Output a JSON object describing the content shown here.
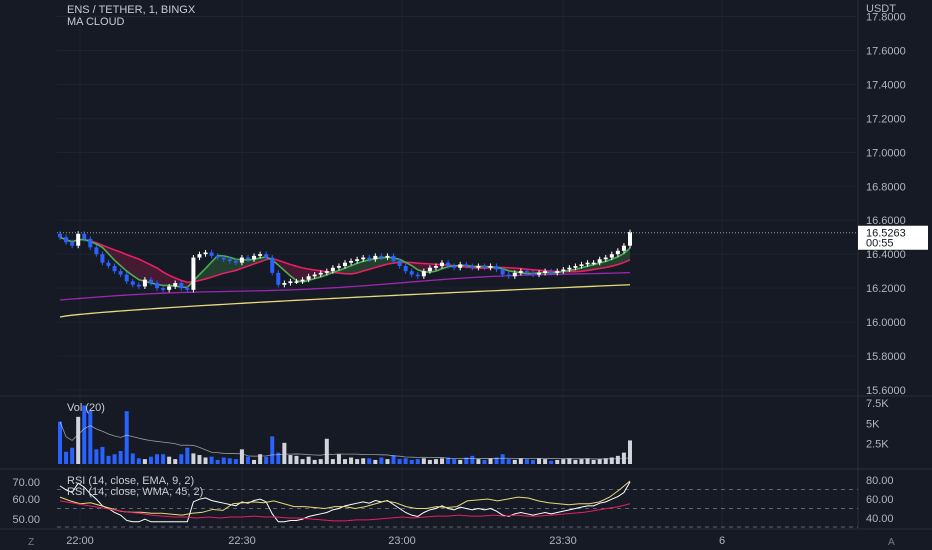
{
  "header": {
    "symbol_line": "ENS / TETHER, 1, BINGX",
    "indicator": "MA CLOUD",
    "currency": "USDT"
  },
  "price_panel": {
    "y_ticks": [
      "17.8000",
      "17.6000",
      "17.4000",
      "17.2000",
      "17.0000",
      "16.8000",
      "16.6000",
      "16.4000",
      "16.2000",
      "16.0000",
      "15.8000",
      "15.6000"
    ],
    "last_price": "16.5263",
    "countdown": "00:55"
  },
  "volume_panel": {
    "legend": "Vol (20)",
    "y_ticks": [
      "7.5K",
      "5K",
      "2.5K"
    ]
  },
  "rsi_panel": {
    "legend_1": "RSI (14, close, EMA, 9, 2)",
    "legend_2": "RSI (14, close, WMA, 45, 2)",
    "left_ticks": [
      "70.00",
      "60.00",
      "50.00"
    ],
    "right_ticks": [
      "80.00",
      "60.00",
      "40.00"
    ]
  },
  "time_axis": {
    "labels": [
      "22:00",
      "22:30",
      "23:00",
      "23:30",
      "6"
    ],
    "corner_left": "Z",
    "corner_right": "A"
  },
  "colors": {
    "bg": "#161a25",
    "up": "#ffffff",
    "down": "#2962ff",
    "ma_fast": "#4caf50",
    "ma_mid": "#e91e63",
    "ma_slow": "#9c27b0",
    "ma_long": "#e8d97a"
  },
  "chart_data": {
    "type": "candlestick",
    "x_range": [
      "21:55",
      "00:00"
    ],
    "ylim": [
      15.6,
      17.8
    ],
    "closes": [
      16.5,
      16.47,
      16.45,
      16.52,
      16.49,
      16.44,
      16.4,
      16.35,
      16.33,
      16.3,
      16.28,
      16.24,
      16.22,
      16.21,
      16.25,
      16.23,
      16.2,
      16.19,
      16.21,
      16.23,
      16.2,
      16.19,
      16.38,
      16.4,
      16.41,
      16.39,
      16.38,
      16.37,
      16.36,
      16.35,
      16.38,
      16.37,
      16.39,
      16.4,
      16.38,
      16.29,
      16.22,
      16.23,
      16.24,
      16.24,
      16.25,
      16.27,
      16.28,
      16.29,
      16.3,
      16.32,
      16.33,
      16.35,
      16.36,
      16.37,
      16.38,
      16.37,
      16.39,
      16.38,
      16.39,
      16.36,
      16.33,
      16.3,
      16.28,
      16.27,
      16.3,
      16.32,
      16.33,
      16.35,
      16.33,
      16.32,
      16.34,
      16.33,
      16.32,
      16.33,
      16.32,
      16.33,
      16.31,
      16.28,
      16.27,
      16.29,
      16.3,
      16.29,
      16.28,
      16.29,
      16.3,
      16.29,
      16.3,
      16.31,
      16.32,
      16.33,
      16.34,
      16.35,
      16.35,
      16.37,
      16.38,
      16.4,
      16.42,
      16.45,
      16.53
    ],
    "volume": [
      5200,
      1500,
      2000,
      5800,
      7200,
      6600,
      1800,
      2100,
      1000,
      1200,
      1600,
      6500,
      1300,
      700,
      600,
      900,
      1200,
      1200,
      900,
      600,
      1200,
      2000,
      1300,
      1100,
      800,
      900,
      500,
      800,
      700,
      600,
      1800,
      900,
      500,
      1200,
      900,
      3400,
      1400,
      2600,
      1100,
      1000,
      600,
      900,
      500,
      600,
      3100,
      600,
      1200,
      600,
      800,
      600,
      700,
      700,
      500,
      800,
      600,
      1100,
      600,
      700,
      500,
      600,
      700,
      500,
      600,
      700,
      800,
      600,
      500,
      800,
      1000,
      600,
      500,
      700,
      800,
      1200,
      600,
      500,
      700,
      600,
      500,
      700,
      600,
      400,
      500,
      600,
      700,
      500,
      600,
      700,
      500,
      600,
      700,
      800,
      1000,
      1400,
      2900
    ],
    "rsi_ema": {
      "values": [
        62,
        58,
        55,
        56,
        53,
        50,
        47,
        46,
        46,
        45,
        45,
        44,
        43,
        45,
        46,
        49,
        48,
        55,
        56,
        57,
        56,
        58,
        55,
        52,
        52,
        51,
        50,
        52,
        52,
        50,
        52,
        55,
        58,
        56,
        52,
        50,
        50,
        52,
        51,
        52,
        58,
        59,
        60,
        58,
        60,
        62,
        61,
        58,
        56,
        55,
        54,
        55,
        55,
        57,
        62,
        70,
        79
      ]
    },
    "rsi_wma": {
      "values": [
        58,
        56,
        54,
        52,
        50,
        48,
        46,
        45,
        43,
        42,
        41,
        41,
        40,
        41,
        40,
        41,
        41,
        42,
        41,
        41,
        40,
        40,
        39,
        38,
        37,
        37,
        38,
        38,
        39,
        40,
        41,
        40,
        41,
        42,
        42,
        43,
        42,
        42,
        43,
        42,
        43,
        42,
        42,
        43,
        44,
        45,
        46,
        48,
        50,
        52,
        55
      ]
    }
  }
}
